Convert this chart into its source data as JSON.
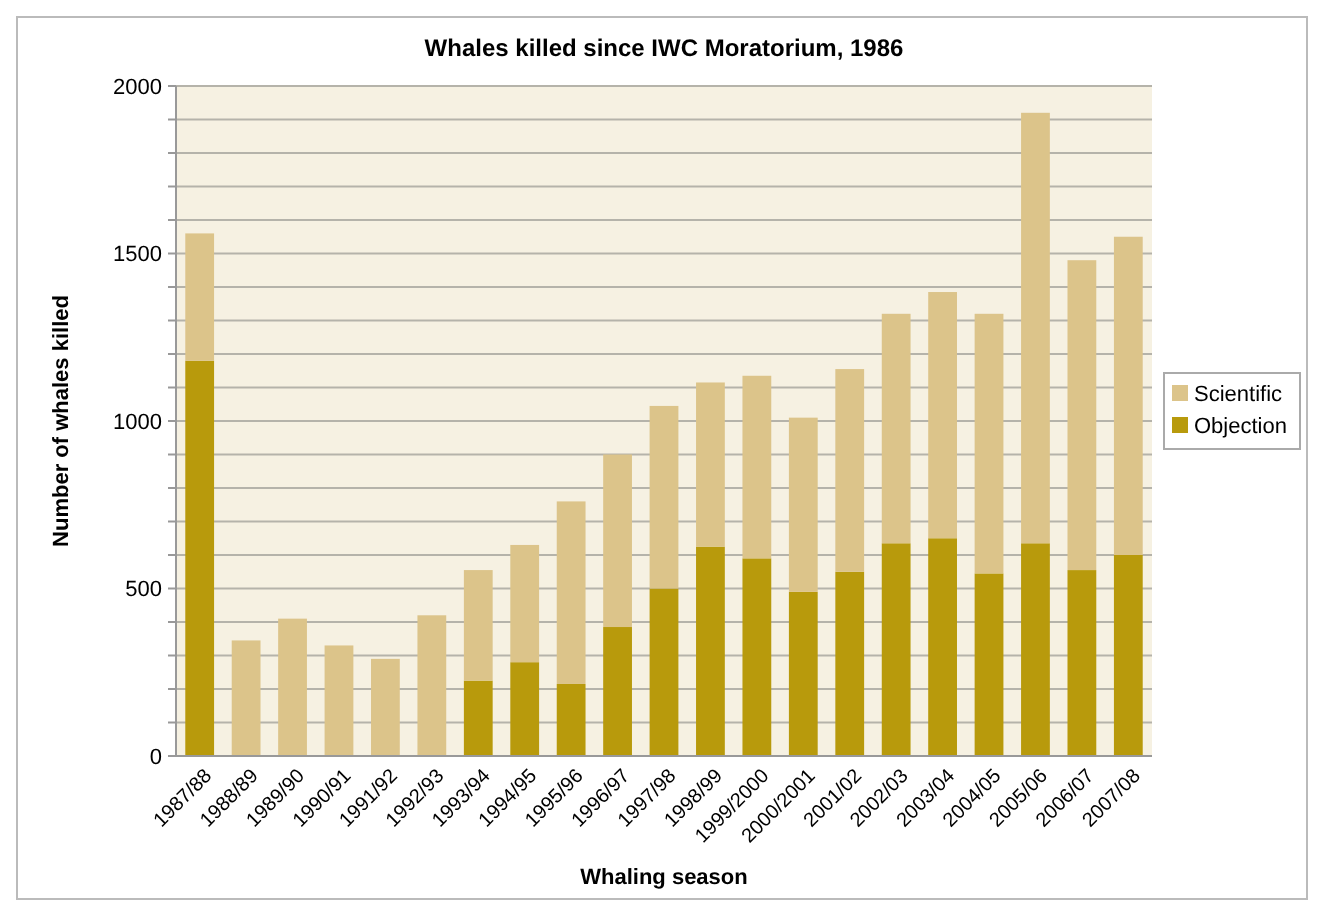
{
  "chart_data": {
    "type": "bar",
    "title": "Whales killed since IWC Moratorium, 1986",
    "xlabel": "Whaling season",
    "ylabel": "Number of whales killed",
    "categories": [
      "1987/88",
      "1988/89",
      "1989/90",
      "1990/91",
      "1991/92",
      "1992/93",
      "1993/94",
      "1994/95",
      "1995/96",
      "1996/97",
      "1997/98",
      "1998/99",
      "1999/2000",
      "2000/2001",
      "2001/02",
      "2002/03",
      "2003/04",
      "2004/05",
      "2005/06",
      "2006/07",
      "2007/08"
    ],
    "stacked": true,
    "series": [
      {
        "name": "Objection",
        "color": "#b89a0c",
        "values": [
          1180,
          0,
          0,
          0,
          0,
          0,
          225,
          280,
          215,
          385,
          500,
          625,
          590,
          490,
          550,
          635,
          650,
          545,
          635,
          555,
          600
        ]
      },
      {
        "name": "Scientific",
        "color": "#dcc48a",
        "values": [
          380,
          345,
          410,
          330,
          290,
          420,
          330,
          350,
          545,
          515,
          545,
          490,
          545,
          520,
          605,
          685,
          735,
          775,
          1285,
          925,
          950
        ]
      }
    ],
    "ylim": [
      0,
      2000
    ],
    "yticks": [
      0,
      {
        "value": 100,
        "label": null
      },
      {
        "value": 200,
        "label": null
      },
      {
        "value": 300,
        "label": null
      },
      {
        "value": 400,
        "label": null
      },
      500,
      {
        "value": 600,
        "label": null
      },
      {
        "value": 700,
        "label": null
      },
      {
        "value": 800,
        "label": null
      },
      {
        "value": 900,
        "label": null
      },
      1000,
      {
        "value": 1100,
        "label": null
      },
      {
        "value": 1200,
        "label": null
      },
      {
        "value": 1300,
        "label": null
      },
      {
        "value": 1400,
        "label": null
      },
      1500,
      {
        "value": 1600,
        "label": null
      },
      {
        "value": 1700,
        "label": null
      },
      {
        "value": 1800,
        "label": null
      },
      {
        "value": 1900,
        "label": null
      },
      2000
    ],
    "grid": "y",
    "legend": "right"
  }
}
